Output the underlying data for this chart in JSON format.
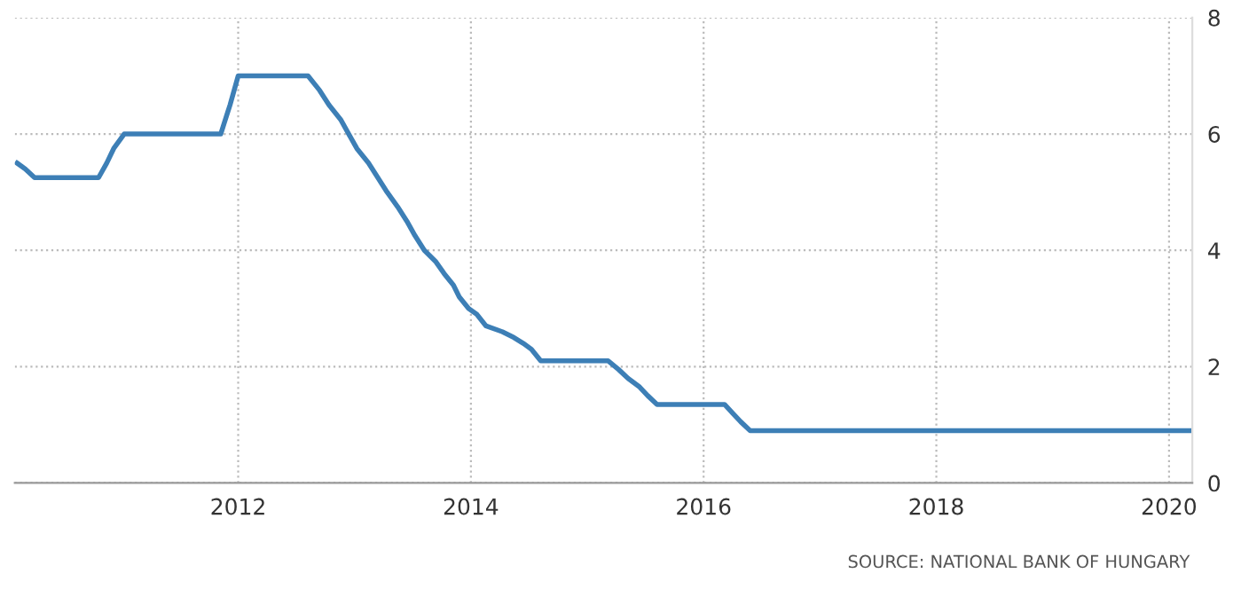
{
  "chart_data": {
    "type": "line",
    "x": [
      2010.1,
      2010.17,
      2010.25,
      2010.8,
      2010.87,
      2010.93,
      2011.02,
      2011.85,
      2011.93,
      2012.0,
      2012.6,
      2012.7,
      2012.78,
      2012.88,
      2012.95,
      2013.02,
      2013.12,
      2013.2,
      2013.28,
      2013.37,
      2013.45,
      2013.52,
      2013.6,
      2013.7,
      2013.77,
      2013.85,
      2013.9,
      2013.98,
      2014.05,
      2014.13,
      2014.27,
      2014.37,
      2014.45,
      2014.52,
      2014.6,
      2015.18,
      2015.27,
      2015.35,
      2015.45,
      2015.52,
      2015.6,
      2016.18,
      2016.25,
      2016.32,
      2016.4,
      2020.17
    ],
    "series": [
      {
        "color": "#3d7fb6",
        "values": [
          5.5,
          5.4,
          5.25,
          5.25,
          5.5,
          5.75,
          6.0,
          6.0,
          6.5,
          7.0,
          7.0,
          6.75,
          6.5,
          6.25,
          6.0,
          5.75,
          5.5,
          5.25,
          5.0,
          4.75,
          4.5,
          4.25,
          4.0,
          3.8,
          3.6,
          3.4,
          3.2,
          3.0,
          2.9,
          2.7,
          2.6,
          2.5,
          2.4,
          2.3,
          2.1,
          2.1,
          1.95,
          1.8,
          1.65,
          1.5,
          1.35,
          1.35,
          1.2,
          1.05,
          0.9,
          0.9
        ]
      }
    ],
    "xlim": [
      2010.08,
      2020.2
    ],
    "xticks": [
      2012,
      2014,
      2016,
      2018,
      2020
    ],
    "ylim": [
      0,
      8
    ],
    "yticks": [
      0,
      2,
      4,
      6,
      8
    ],
    "grid": true,
    "marker": "none",
    "line_style": "solid",
    "annotations": [
      "SOURCE: NATIONAL BANK OF HUNGARY"
    ]
  }
}
